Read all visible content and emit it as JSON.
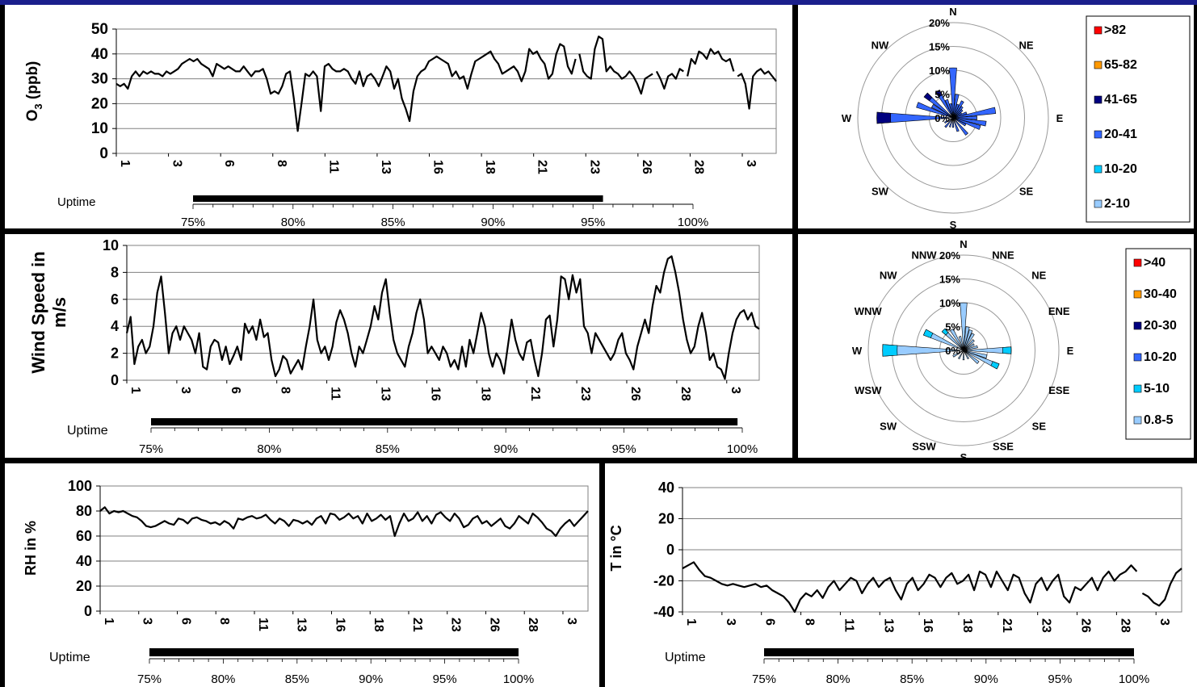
{
  "colors": {
    "line": "#000000",
    "plot_border": "#808080",
    "gridline": "#808080",
    "panel_bg": "#ffffff",
    "frame": "#000000",
    "title_bar": "#1a1f8c",
    "rose_ring": "#999999"
  },
  "chart_data": [
    {
      "type": "line",
      "ylabel": "O3 (ppb)",
      "ylabel_main": "O",
      "ylabel_sub": "3",
      "ylabel_rest": " (ppb)",
      "ylim": [
        0,
        50
      ],
      "yticks": [
        0,
        10,
        20,
        30,
        40,
        50
      ],
      "x_tick_labels": [
        "1",
        "3",
        "6",
        "8",
        "11",
        "13",
        "16",
        "18",
        "21",
        "23",
        "26",
        "28",
        "3"
      ],
      "grid": true,
      "series": [
        {
          "values": [
            28,
            27,
            28,
            26,
            31,
            33,
            31,
            33,
            32,
            33,
            32,
            32,
            31,
            33,
            32,
            33,
            34,
            36,
            37,
            38,
            37,
            38,
            36,
            35,
            34,
            31,
            36,
            35,
            34,
            35,
            34,
            33,
            33,
            35,
            33,
            31,
            33,
            33,
            34,
            30,
            24,
            25,
            24,
            27,
            32,
            33,
            22,
            9,
            20,
            32,
            31,
            33,
            31,
            17,
            35,
            36,
            34,
            33,
            33,
            34,
            33,
            30,
            28,
            33,
            27,
            31,
            32,
            30,
            27,
            31,
            35,
            33,
            26,
            30,
            22,
            18,
            13,
            25,
            31,
            33,
            34,
            37,
            38,
            39,
            38,
            37,
            36,
            31,
            33,
            30,
            31,
            26,
            32,
            37,
            38,
            39,
            40,
            41,
            38,
            36,
            32,
            33,
            34,
            35,
            33,
            29,
            33,
            42,
            40,
            41,
            38,
            36,
            30,
            32,
            40,
            44,
            43,
            35,
            32,
            38,
            40,
            33,
            31,
            30,
            42,
            47,
            46,
            33,
            35,
            33,
            32,
            30,
            31,
            33,
            31,
            28,
            24,
            30,
            31,
            32,
            33,
            30,
            26,
            31,
            32,
            30,
            34,
            33,
            31,
            38,
            36,
            41,
            40,
            38,
            42,
            40,
            41,
            38,
            37,
            38,
            33,
            31,
            32,
            28,
            18,
            31,
            33,
            34,
            32,
            33,
            31,
            29
          ]
        }
      ],
      "gaps_after": [
        119,
        139,
        147,
        160
      ],
      "uptime": {
        "label": "Uptime",
        "value": 95.5,
        "ticks": [
          "75%",
          "80%",
          "85%",
          "90%",
          "95%",
          "100%"
        ],
        "min": 75,
        "max": 100
      }
    },
    {
      "type": "line",
      "ylabel": "Wind Speed in m/s",
      "ylabel_lines": [
        "Wind Speed in",
        "m/s"
      ],
      "ylim": [
        0,
        10
      ],
      "yticks": [
        0,
        2,
        4,
        6,
        8,
        10
      ],
      "x_tick_labels": [
        "1",
        "3",
        "6",
        "8",
        "11",
        "13",
        "16",
        "18",
        "21",
        "23",
        "26",
        "28",
        "3"
      ],
      "grid": true,
      "series": [
        {
          "values": [
            3.5,
            4.7,
            1.2,
            2.5,
            3.0,
            2.0,
            2.5,
            4.0,
            6.5,
            7.7,
            5.0,
            2.0,
            3.5,
            4.0,
            3.0,
            4.0,
            3.5,
            3.0,
            2.0,
            3.5,
            1.0,
            0.8,
            2.5,
            3.0,
            2.8,
            1.5,
            2.5,
            1.2,
            1.8,
            2.5,
            1.5,
            4.2,
            3.5,
            4.0,
            3.0,
            4.5,
            3.2,
            3.5,
            1.5,
            0.3,
            0.8,
            1.8,
            1.5,
            0.5,
            1.0,
            1.5,
            0.8,
            2.5,
            4.0,
            6.0,
            3.0,
            2.0,
            2.5,
            1.5,
            2.5,
            4.3,
            5.2,
            4.5,
            3.5,
            2.0,
            1.0,
            2.5,
            2.0,
            3.0,
            4.0,
            5.5,
            4.5,
            6.5,
            7.5,
            5.0,
            3.0,
            2.0,
            1.5,
            1.0,
            2.5,
            3.5,
            5.0,
            6.0,
            4.5,
            2.0,
            2.5,
            2.0,
            1.5,
            2.5,
            2.0,
            1.0,
            1.5,
            0.8,
            2.5,
            1.0,
            3.0,
            2.0,
            3.5,
            5.0,
            4.0,
            2.0,
            1.0,
            2.0,
            1.5,
            0.5,
            2.5,
            4.5,
            3.0,
            2.0,
            1.5,
            2.8,
            3.0,
            1.5,
            0.3,
            2.0,
            4.5,
            4.8,
            2.5,
            4.5,
            7.7,
            7.5,
            6.0,
            7.8,
            6.5,
            7.5,
            4.0,
            3.5,
            2.0,
            3.5,
            3.0,
            2.5,
            2.0,
            1.5,
            2.0,
            3.0,
            3.5,
            2.0,
            1.5,
            0.8,
            2.5,
            3.5,
            4.5,
            3.5,
            5.5,
            7.0,
            6.5,
            8.0,
            9.0,
            9.2,
            8.0,
            6.5,
            4.5,
            3.0,
            2.0,
            2.5,
            4.0,
            5.0,
            3.5,
            1.5,
            2.0,
            1.0,
            0.8,
            0.1,
            2.0,
            3.5,
            4.5,
            5.0,
            5.2,
            4.5,
            5.0,
            4.0,
            3.8
          ]
        }
      ],
      "uptime": {
        "label": "Uptime",
        "value": 99.8,
        "ticks": [
          "75%",
          "80%",
          "85%",
          "90%",
          "95%",
          "100%"
        ],
        "min": 75,
        "max": 100
      }
    },
    {
      "type": "line",
      "ylabel": "RH in %",
      "ylim": [
        0,
        100
      ],
      "yticks": [
        0,
        20,
        40,
        60,
        80,
        100
      ],
      "x_tick_labels": [
        "1",
        "3",
        "6",
        "8",
        "11",
        "13",
        "16",
        "18",
        "21",
        "23",
        "26",
        "28",
        "3"
      ],
      "grid": true,
      "series": [
        {
          "values": [
            80,
            83,
            78,
            80,
            79,
            80,
            78,
            76,
            75,
            72,
            68,
            67,
            68,
            70,
            72,
            70,
            69,
            74,
            73,
            70,
            74,
            75,
            73,
            72,
            70,
            71,
            69,
            72,
            70,
            66,
            74,
            73,
            75,
            76,
            74,
            75,
            77,
            73,
            70,
            74,
            72,
            68,
            73,
            72,
            70,
            72,
            69,
            74,
            76,
            70,
            78,
            77,
            73,
            75,
            78,
            74,
            76,
            70,
            78,
            72,
            74,
            77,
            73,
            76,
            60,
            70,
            78,
            72,
            74,
            79,
            72,
            76,
            70,
            77,
            79,
            75,
            72,
            78,
            74,
            67,
            69,
            74,
            76,
            70,
            72,
            68,
            71,
            74,
            68,
            66,
            70,
            76,
            73,
            70,
            78,
            75,
            71,
            66,
            64,
            60,
            66,
            70,
            73,
            68,
            72,
            76,
            80
          ]
        }
      ],
      "uptime": {
        "label": "Uptime",
        "value": 100,
        "ticks": [
          "75%",
          "80%",
          "85%",
          "90%",
          "95%",
          "100%"
        ],
        "min": 75,
        "max": 100
      }
    },
    {
      "type": "line",
      "ylabel": "T in °C",
      "ylim": [
        -40,
        40
      ],
      "yticks": [
        -40,
        -20,
        0,
        20,
        40
      ],
      "x_tick_labels": [
        "1",
        "3",
        "6",
        "8",
        "11",
        "13",
        "16",
        "18",
        "21",
        "23",
        "26",
        "28",
        "3"
      ],
      "grid": true,
      "series": [
        {
          "values": [
            -12,
            -10,
            -8,
            -13,
            -17,
            -18,
            -20,
            -22,
            -23,
            -22,
            -23,
            -24,
            -23,
            -22,
            -24,
            -23,
            -26,
            -28,
            -30,
            -34,
            -40,
            -32,
            -28,
            -30,
            -26,
            -31,
            -24,
            -20,
            -26,
            -22,
            -18,
            -20,
            -28,
            -22,
            -18,
            -24,
            -20,
            -18,
            -26,
            -32,
            -22,
            -18,
            -26,
            -22,
            -16,
            -18,
            -24,
            -18,
            -15,
            -22,
            -20,
            -16,
            -26,
            -14,
            -16,
            -24,
            -14,
            -20,
            -26,
            -16,
            -18,
            -28,
            -34,
            -22,
            -18,
            -26,
            -20,
            -16,
            -30,
            -34,
            -24,
            -26,
            -22,
            -18,
            -26,
            -18,
            -14,
            -20,
            -16,
            -14,
            -10,
            -14,
            -28,
            -30,
            -34,
            -36,
            -32,
            -22,
            -15,
            -12
          ]
        }
      ],
      "gaps_after": [
        81
      ],
      "uptime": {
        "label": "Uptime",
        "value": 100,
        "ticks": [
          "75%",
          "80%",
          "85%",
          "90%",
          "95%",
          "100%"
        ],
        "min": 75,
        "max": 100
      }
    },
    {
      "type": "wind-rose",
      "ring_labels": [
        "0%",
        "5%",
        "10%",
        "15%",
        "20%"
      ],
      "ring_values": [
        0,
        5,
        10,
        15,
        20
      ],
      "directions": [
        "N",
        "NE",
        "E",
        "SE",
        "S",
        "SW",
        "W",
        "NW"
      ],
      "legend": [
        {
          "label": ">82",
          "color": "#ff0000"
        },
        {
          "label": "65-82",
          "color": "#ff9900"
        },
        {
          "label": "41-65",
          "color": "#000080"
        },
        {
          "label": "20-41",
          "color": "#3366ff"
        },
        {
          "label": "10-20",
          "color": "#00ccff"
        },
        {
          "label": "2-10",
          "color": "#99ccff"
        }
      ],
      "sectors": [
        {
          "angle": 0,
          "value": 10.5,
          "color": "#3366ff"
        },
        {
          "angle": 10,
          "value": 5,
          "color": "#3366ff"
        },
        {
          "angle": 20,
          "value": 3,
          "color": "#3366ff"
        },
        {
          "angle": 30,
          "value": 4,
          "color": "#3366ff"
        },
        {
          "angle": 40,
          "value": 3,
          "color": "#3366ff"
        },
        {
          "angle": 50,
          "value": 2.5,
          "color": "#3366ff"
        },
        {
          "angle": 60,
          "value": 2,
          "color": "#3366ff"
        },
        {
          "angle": 70,
          "value": 3,
          "color": "#3366ff"
        },
        {
          "angle": 80,
          "value": 9,
          "color": "#3366ff"
        },
        {
          "angle": 90,
          "value": 5,
          "color": "#3366ff"
        },
        {
          "angle": 100,
          "value": 7,
          "color": "#3366ff"
        },
        {
          "angle": 110,
          "value": 6,
          "color": "#3366ff"
        },
        {
          "angle": 120,
          "value": 3,
          "color": "#3366ff"
        },
        {
          "angle": 140,
          "value": 4.5,
          "color": "#3366ff"
        },
        {
          "angle": 160,
          "value": 3,
          "color": "#3366ff"
        },
        {
          "angle": 180,
          "value": 2,
          "color": "#3366ff"
        },
        {
          "angle": 200,
          "value": 2,
          "color": "#3366ff"
        },
        {
          "angle": 220,
          "value": 2.5,
          "color": "#3366ff"
        },
        {
          "angle": 240,
          "value": 2,
          "color": "#3366ff"
        },
        {
          "angle": 270,
          "value": 16,
          "color": "#3366ff",
          "tip": "#000080"
        },
        {
          "angle": 290,
          "value": 8,
          "color": "#3366ff"
        },
        {
          "angle": 300,
          "value": 5,
          "color": "#3366ff"
        },
        {
          "angle": 310,
          "value": 7.5,
          "color": "#3366ff",
          "tip": "#000080"
        },
        {
          "angle": 330,
          "value": 6.5,
          "color": "#3366ff",
          "tip": "#000080"
        },
        {
          "angle": 340,
          "value": 4,
          "color": "#3366ff"
        },
        {
          "angle": 350,
          "value": 3,
          "color": "#3366ff"
        }
      ]
    },
    {
      "type": "wind-rose",
      "ring_labels": [
        "0%",
        "5%",
        "10%",
        "15%",
        "20%"
      ],
      "ring_values": [
        0,
        5,
        10,
        15,
        20
      ],
      "directions": [
        "N",
        "NNE",
        "NE",
        "ENE",
        "E",
        "ESE",
        "SE",
        "SSE",
        "S",
        "SSW",
        "SW",
        "WSW",
        "W",
        "WNW",
        "NW",
        "NNW"
      ],
      "legend": [
        {
          "label": ">40",
          "color": "#ff0000"
        },
        {
          "label": "30-40",
          "color": "#ff9900"
        },
        {
          "label": "20-30",
          "color": "#000080"
        },
        {
          "label": "10-20",
          "color": "#3366ff"
        },
        {
          "label": "5-10",
          "color": "#00ccff"
        },
        {
          "label": "0.8-5",
          "color": "#99ccff"
        }
      ],
      "sectors": [
        {
          "angle": 0,
          "value": 10,
          "color": "#99ccff"
        },
        {
          "angle": 10,
          "value": 5,
          "color": "#99ccff"
        },
        {
          "angle": 20,
          "value": 4.5,
          "color": "#99ccff"
        },
        {
          "angle": 30,
          "value": 4,
          "color": "#99ccff"
        },
        {
          "angle": 45,
          "value": 3,
          "color": "#99ccff"
        },
        {
          "angle": 60,
          "value": 2.5,
          "color": "#99ccff"
        },
        {
          "angle": 75,
          "value": 3,
          "color": "#99ccff"
        },
        {
          "angle": 90,
          "value": 10,
          "color": "#99ccff",
          "tip": "#00ccff"
        },
        {
          "angle": 105,
          "value": 5,
          "color": "#99ccff"
        },
        {
          "angle": 115,
          "value": 8,
          "color": "#99ccff",
          "tip": "#00ccff"
        },
        {
          "angle": 130,
          "value": 4,
          "color": "#99ccff"
        },
        {
          "angle": 150,
          "value": 2,
          "color": "#99ccff"
        },
        {
          "angle": 180,
          "value": 2,
          "color": "#99ccff"
        },
        {
          "angle": 210,
          "value": 2,
          "color": "#99ccff"
        },
        {
          "angle": 240,
          "value": 2.5,
          "color": "#99ccff"
        },
        {
          "angle": 270,
          "value": 17,
          "color": "#99ccff",
          "tip": "#00ccff"
        },
        {
          "angle": 295,
          "value": 9,
          "color": "#99ccff",
          "tip": "#00ccff"
        },
        {
          "angle": 315,
          "value": 6,
          "color": "#99ccff",
          "tip": "#00ccff"
        },
        {
          "angle": 330,
          "value": 5,
          "color": "#99ccff"
        },
        {
          "angle": 345,
          "value": 3,
          "color": "#99ccff"
        }
      ]
    }
  ]
}
